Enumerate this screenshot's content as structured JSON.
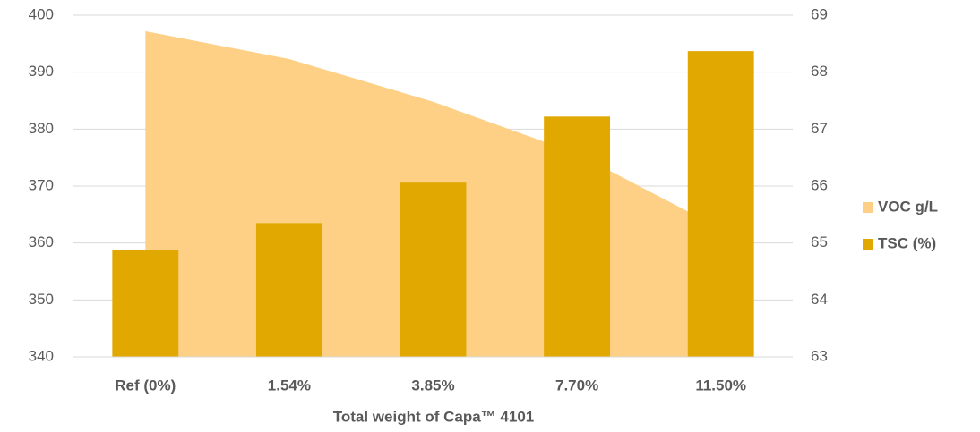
{
  "chart_data": {
    "type": "combo",
    "xlabel": "Total weight of Capa™ 4101",
    "categories": [
      "Ref (0%)",
      "1.54%",
      "3.85%",
      "7.70%",
      "11.50%"
    ],
    "series": [
      {
        "name": "VOC g/L",
        "type": "area",
        "color": "#fdd086",
        "axis": "y",
        "values": [
          397.2,
          392.3,
          384.8,
          375.7,
          362.5
        ]
      },
      {
        "name": "TSC (%)",
        "type": "bar",
        "color": "#e0a800",
        "axis": "y2",
        "values": [
          64.87,
          65.35,
          66.06,
          67.22,
          68.37
        ]
      }
    ],
    "ylim": [
      340,
      400
    ],
    "yticks": [
      340,
      350,
      360,
      370,
      380,
      390,
      400
    ],
    "y2lim": [
      63,
      69
    ],
    "y2ticks": [
      63,
      64,
      65,
      66,
      67,
      68,
      69
    ],
    "grid": true,
    "legend": "right"
  }
}
